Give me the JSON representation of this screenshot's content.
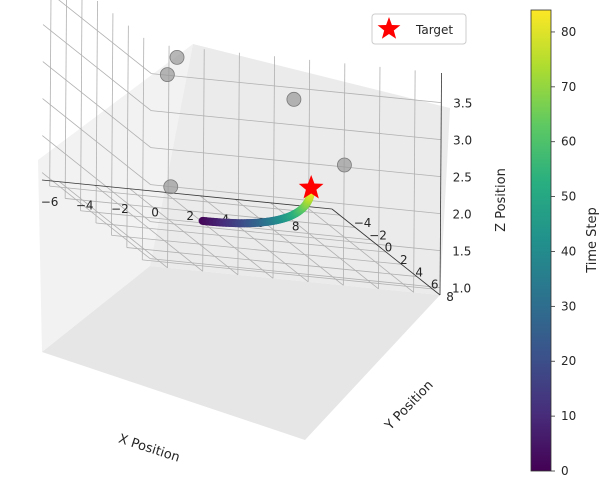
{
  "chart_data": {
    "type": "scatter",
    "subtype": "3d-trajectory",
    "title": "",
    "xlabel": "X Position",
    "ylabel": "Y Position",
    "zlabel": "Z Position",
    "x_ticks": [
      "−6",
      "−4",
      "−2",
      "0",
      "2",
      "4",
      "6",
      "8"
    ],
    "y_ticks": [
      "−4",
      "−2",
      "0",
      "2",
      "4",
      "6",
      "8"
    ],
    "z_ticks": [
      "1.0",
      "1.5",
      "2.0",
      "2.5",
      "3.0",
      "3.5"
    ],
    "xlim": [
      -7,
      9.5
    ],
    "ylim": [
      -5,
      9
    ],
    "zlim": [
      0.9,
      3.9
    ],
    "trajectory": {
      "time_steps": [
        0,
        84
      ],
      "colormap": "viridis",
      "start": [
        -0.5,
        1.0,
        1.0
      ],
      "end": [
        5.0,
        2.5,
        1.7
      ]
    },
    "target": {
      "name": "Target",
      "position": [
        5.0,
        2.5,
        1.7
      ],
      "marker": "star",
      "color": "#ff0000"
    },
    "obstacles": [
      {
        "x": -4.0,
        "y": 5.5,
        "z": 3.5
      },
      {
        "x": 2.0,
        "y": 7.0,
        "z": 3.2
      },
      {
        "x": -3.0,
        "y": 2.0,
        "z": 3.0
      },
      {
        "x": 6.0,
        "y": 4.5,
        "z": 2.2
      },
      {
        "x": -1.0,
        "y": -2.0,
        "z": 1.2
      }
    ],
    "obstacle_color": "#999999",
    "colorbar": {
      "label": "Time Step",
      "ticks": [
        "0",
        "10",
        "20",
        "30",
        "40",
        "50",
        "60",
        "70",
        "80"
      ],
      "range": [
        0,
        84
      ]
    },
    "legend": {
      "position": "top-right",
      "entries": [
        "Target"
      ]
    },
    "grid": true
  }
}
